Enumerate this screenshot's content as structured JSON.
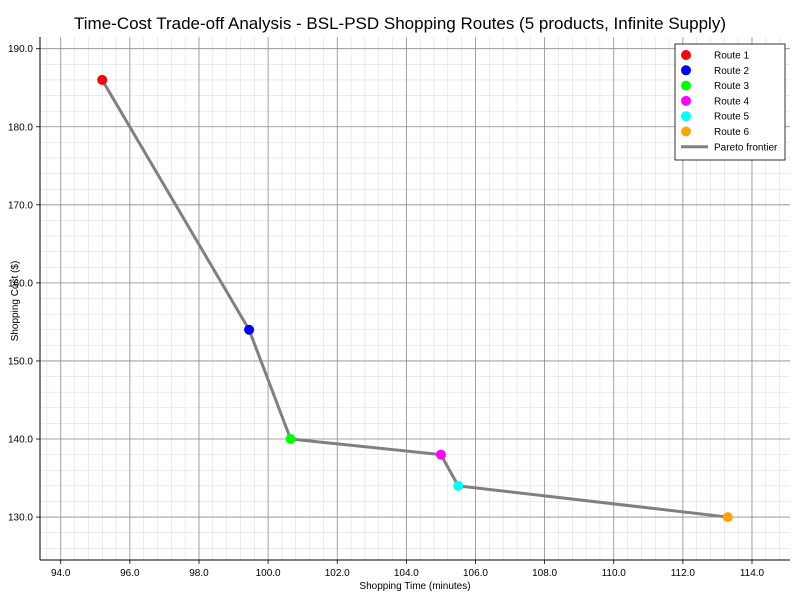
{
  "chart_data": {
    "type": "scatter",
    "title": "Time-Cost Trade-off Analysis - BSL-PSD Shopping Routes (5 products, Infinite Supply)",
    "xlabel": "Shopping Time (minutes)",
    "ylabel": "Shopping Cost ($)",
    "xlim": [
      93.4,
      115.1
    ],
    "ylim": [
      124.5,
      191.5
    ],
    "x_ticks": [
      94.0,
      96.0,
      98.0,
      100.0,
      102.0,
      104.0,
      106.0,
      108.0,
      110.0,
      112.0,
      114.0
    ],
    "y_ticks": [
      130.0,
      140.0,
      150.0,
      160.0,
      170.0,
      180.0,
      190.0
    ],
    "x_minor_step": 0.4,
    "y_minor_step": 2,
    "grid": true,
    "legend_position": "top-right",
    "series": [
      {
        "name": "Route 1",
        "color": "#ff0000",
        "points": [
          [
            95.2,
            186.0
          ]
        ]
      },
      {
        "name": "Route 2",
        "color": "#0000ff",
        "points": [
          [
            99.45,
            154.0
          ]
        ]
      },
      {
        "name": "Route 3",
        "color": "#00ff00",
        "points": [
          [
            100.65,
            140.0
          ]
        ]
      },
      {
        "name": "Route 4",
        "color": "#ff00ff",
        "points": [
          [
            105.0,
            138.0
          ]
        ]
      },
      {
        "name": "Route 5",
        "color": "#00ffff",
        "points": [
          [
            105.5,
            134.0
          ]
        ]
      },
      {
        "name": "Route 6",
        "color": "#ffa500",
        "points": [
          [
            113.3,
            130.0
          ]
        ]
      }
    ],
    "pareto_frontier": {
      "name": "Pareto frontier",
      "color": "#808080",
      "points": [
        [
          95.2,
          186.0
        ],
        [
          99.45,
          154.0
        ],
        [
          100.65,
          140.0
        ],
        [
          105.0,
          138.0
        ],
        [
          105.5,
          134.0
        ],
        [
          113.3,
          130.0
        ]
      ]
    }
  }
}
